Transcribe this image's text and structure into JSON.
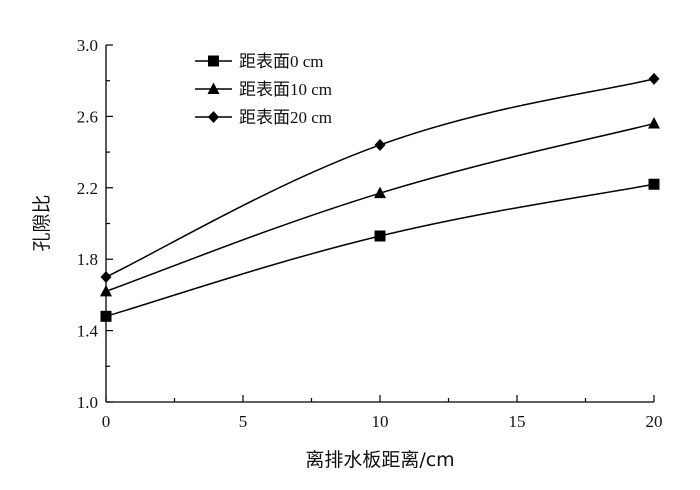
{
  "chart_data": {
    "type": "line",
    "title": "",
    "xlabel": "离排水板距离/cm",
    "ylabel": "孔隙比",
    "xlim": [
      0,
      20
    ],
    "ylim": [
      1.0,
      3.0
    ],
    "x_ticks": [
      "0",
      "5",
      "10",
      "15",
      "20"
    ],
    "y_ticks": [
      "1.0",
      "1.4",
      "1.8",
      "2.2",
      "2.6",
      "3.0"
    ],
    "x": [
      0,
      10,
      20
    ],
    "grid": false,
    "legend_position": "top-left",
    "series": [
      {
        "name": "距表面0 cm",
        "marker": "square",
        "values": [
          1.48,
          1.93,
          2.22
        ]
      },
      {
        "name": "距表面10 cm",
        "marker": "triangle",
        "values": [
          1.62,
          2.17,
          2.56
        ]
      },
      {
        "name": "距表面20 cm",
        "marker": "diamond",
        "values": [
          1.7,
          2.44,
          2.81
        ]
      }
    ]
  }
}
